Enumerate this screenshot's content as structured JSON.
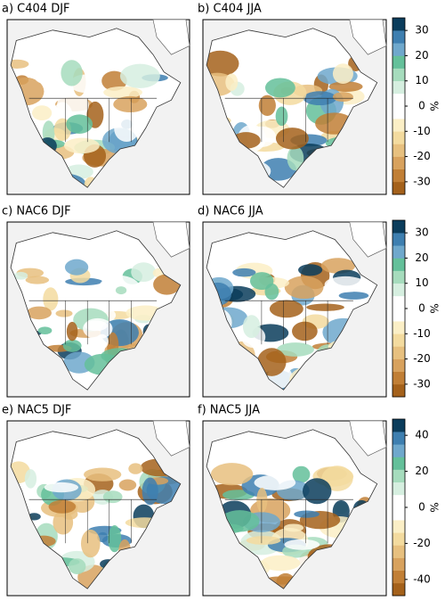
{
  "panels": [
    {
      "title": "a) C404 DJF"
    },
    {
      "title": "b) C404 JJA"
    },
    {
      "title": "c) NAC6 DJF"
    },
    {
      "title": "d) NAC6 JJA"
    },
    {
      "title": "e) NAC5 DJF"
    },
    {
      "title": "f) NAC5 JJA"
    }
  ],
  "colorbars": [
    {
      "label": "%",
      "lim": [
        -35,
        35
      ],
      "ticks": [
        30,
        20,
        10,
        0,
        -10,
        -20,
        -30
      ],
      "colors": [
        "#a4611b",
        "#c17f36",
        "#d8a25e",
        "#e7c07f",
        "#f3db9f",
        "#fbefc6",
        "#ffffff",
        "#ffffff",
        "#d6efe0",
        "#a6dcbd",
        "#64c09a",
        "#6fa8cc",
        "#3e7fb0",
        "#0b3d5c"
      ]
    },
    {
      "label": "%",
      "lim": [
        -35,
        35
      ],
      "ticks": [
        30,
        20,
        10,
        0,
        -10,
        -20,
        -30
      ],
      "colors": [
        "#a4611b",
        "#c17f36",
        "#d8a25e",
        "#e7c07f",
        "#f3db9f",
        "#fbefc6",
        "#ffffff",
        "#ffffff",
        "#d6efe0",
        "#a6dcbd",
        "#64c09a",
        "#6fa8cc",
        "#3e7fb0",
        "#0b3d5c"
      ]
    },
    {
      "label": "%",
      "lim": [
        -49,
        49
      ],
      "ticks": [
        40,
        20,
        0,
        -20,
        -40
      ],
      "colors": [
        "#a4611b",
        "#c17f36",
        "#d8a25e",
        "#e7c07f",
        "#f3db9f",
        "#fbefc6",
        "#ffffff",
        "#ffffff",
        "#d6efe0",
        "#a6dcbd",
        "#64c09a",
        "#6fa8cc",
        "#3e7fb0",
        "#0b3d5c"
      ]
    }
  ]
}
